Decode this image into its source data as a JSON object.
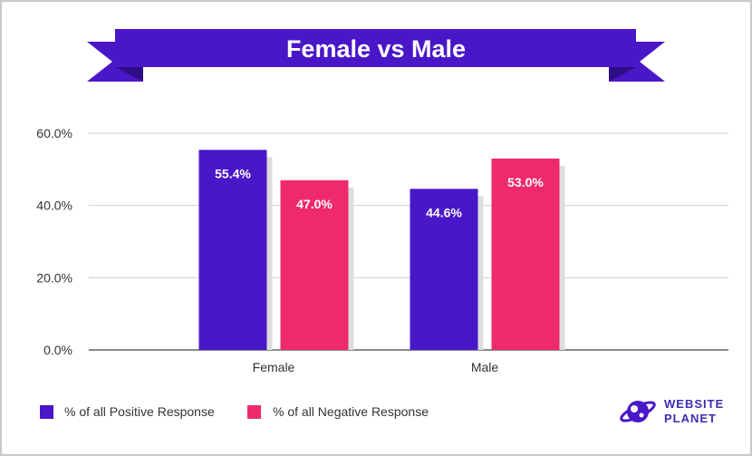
{
  "chart_data": {
    "type": "bar",
    "title": "Female vs Male",
    "categories": [
      "Female",
      "Male"
    ],
    "series": [
      {
        "name": "% of all Positive Response",
        "values": [
          55.4,
          44.6
        ],
        "color": "#4a17c8"
      },
      {
        "name": "% of all Negative Response",
        "values": [
          47.0,
          53.0
        ],
        "color": "#ee2a6b"
      }
    ],
    "yticks": [
      "0.0%",
      "20.0%",
      "40.0%",
      "60.0%"
    ],
    "ylim": [
      0,
      60
    ],
    "grid": true,
    "legend_position": "bottom-left",
    "data_labels": [
      [
        "55.4%",
        "44.6%"
      ],
      [
        "47.0%",
        "53.0%"
      ]
    ]
  },
  "banner_color": "#4a17c8",
  "banner_fold_color": "#3a10a0",
  "logo": {
    "line1": "WEBSITE",
    "line2": "PLANET",
    "icon": "planet-logo-icon"
  }
}
